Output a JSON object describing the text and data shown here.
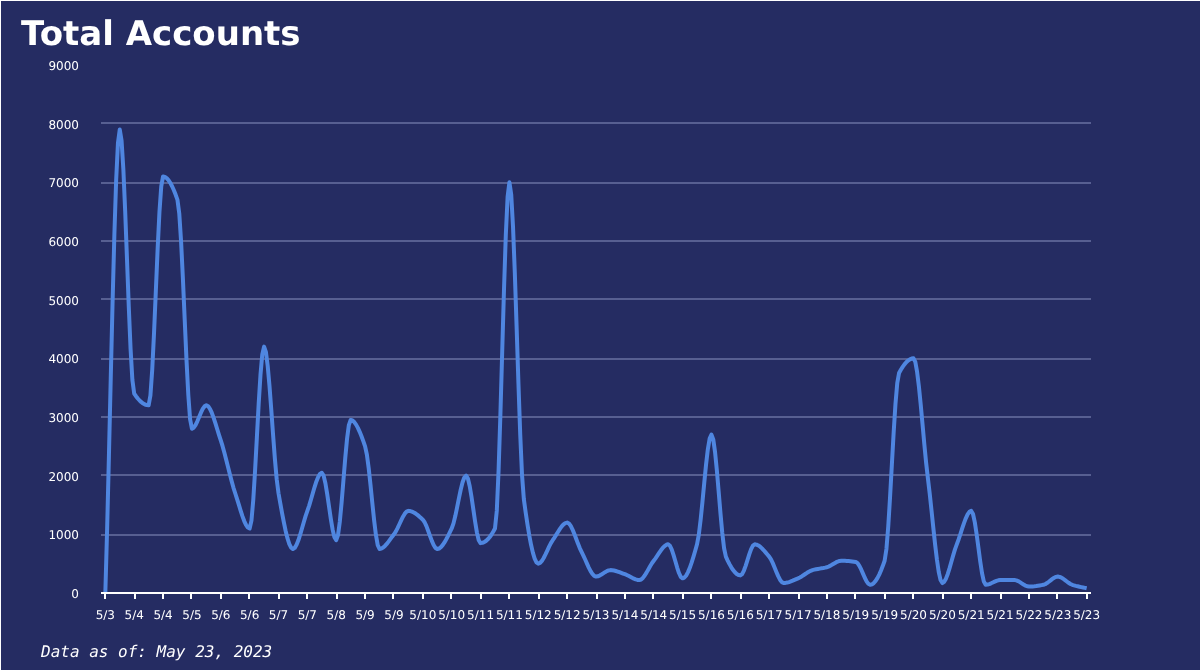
{
  "chart_data": {
    "type": "line",
    "title": "Total Accounts",
    "categories": [
      "5/3",
      null,
      "5/4",
      null,
      "5/4",
      null,
      "5/5",
      null,
      "5/6",
      null,
      "5/6",
      null,
      "5/7",
      null,
      "5/7",
      null,
      "5/8",
      null,
      "5/9",
      null,
      "5/9",
      null,
      "5/10",
      null,
      "5/10",
      null,
      "5/11",
      null,
      "5/11",
      null,
      "5/12",
      null,
      "5/12",
      null,
      "5/13",
      null,
      "5/14",
      null,
      "5/14",
      null,
      "5/15",
      null,
      "5/16",
      null,
      "5/16",
      null,
      "5/17",
      null,
      "5/17",
      null,
      "5/18",
      null,
      "5/19",
      null,
      "5/19",
      null,
      "5/20",
      null,
      "5/20",
      null,
      "5/21",
      null,
      "5/21",
      null,
      "5/22",
      null,
      "5/23",
      null,
      "5/23"
    ],
    "series": [
      {
        "color": "#4f86e0",
        "values": [
          0,
          7900,
          3400,
          3200,
          7100,
          6700,
          2800,
          3200,
          2600,
          1700,
          1100,
          4200,
          1700,
          750,
          1400,
          2050,
          900,
          2950,
          2500,
          750,
          1000,
          1400,
          1250,
          750,
          1100,
          2000,
          850,
          1100,
          7000,
          1600,
          500,
          900,
          1200,
          700,
          280,
          390,
          320,
          220,
          550,
          830,
          250,
          830,
          2700,
          620,
          300,
          830,
          620,
          170,
          250,
          390,
          440,
          550,
          530,
          140,
          550,
          3750,
          4000,
          1950,
          170,
          830,
          1400,
          140,
          220,
          220,
          110,
          140,
          280,
          140,
          80
        ]
      }
    ],
    "ylim": [
      0,
      9000
    ],
    "yticks": [
      0,
      1000,
      2000,
      3000,
      4000,
      5000,
      6000,
      7000,
      8000,
      9000
    ],
    "grid": "y",
    "marker": "none",
    "line_style": "solid",
    "annotations": [
      "Data as of: May 23, 2023"
    ]
  }
}
